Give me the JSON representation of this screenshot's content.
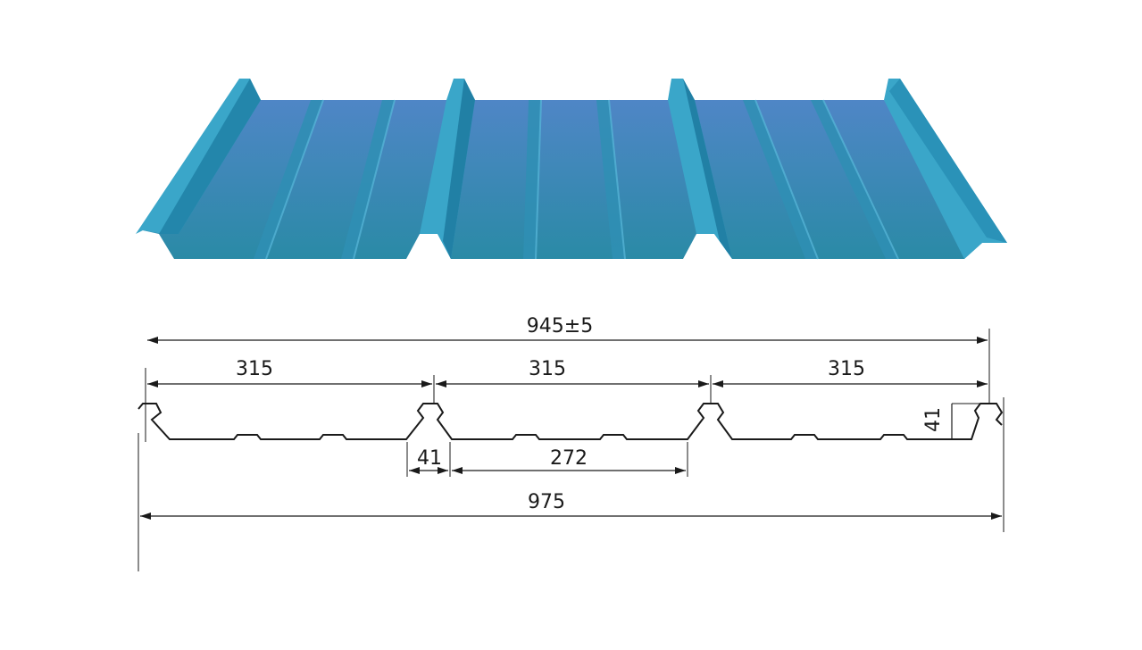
{
  "colors": {
    "sheet_top": "#4f86c6",
    "sheet_bottom": "#2a8aa6",
    "rib_light": "#3aa6c9",
    "rib_dark": "#1f7fa2",
    "line": "#1a1a1a"
  },
  "dimensions": {
    "overall_effective": "945±5",
    "pitch_1": "315",
    "pitch_2": "315",
    "pitch_3": "315",
    "rib_top_width": "41",
    "pan_width": "272",
    "rib_height": "41",
    "overall_width": "975"
  }
}
